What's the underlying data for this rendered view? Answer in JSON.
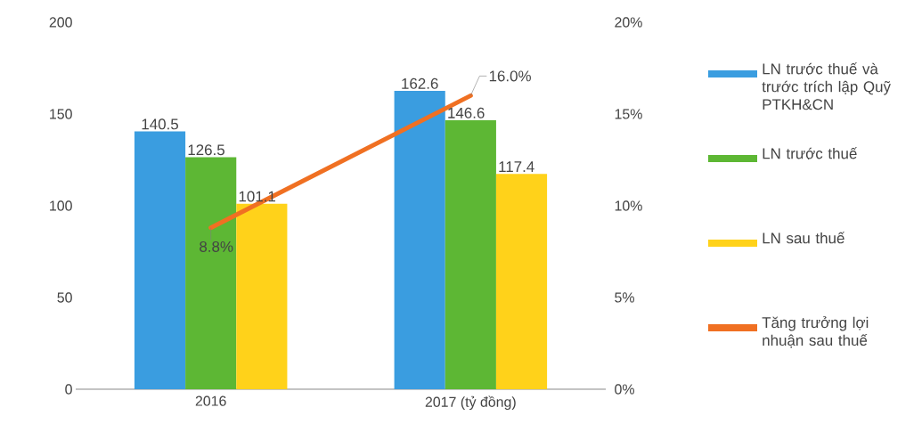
{
  "chart_data": {
    "type": "bar",
    "categories": [
      "2016",
      "2017 (tỷ đồng)"
    ],
    "series": [
      {
        "name": "LN trước thuế và trước trích lập Quỹ PTKH&CN",
        "color": "#3a9de0",
        "values": [
          140.5,
          162.6
        ]
      },
      {
        "name": "LN trước thuế",
        "color": "#5db734",
        "values": [
          126.5,
          146.6
        ]
      },
      {
        "name": "LN sau thuế",
        "color": "#ffd21a",
        "values": [
          101.1,
          117.4
        ]
      },
      {
        "name": "Tăng trưởng lợi nhuận sau thuế",
        "type": "line",
        "axis": "y2",
        "color": "#f07022",
        "values": [
          8.8,
          16.0
        ],
        "value_labels": [
          "8.8%",
          "16.0%"
        ]
      }
    ],
    "ylim": [
      0,
      200
    ],
    "yticks": [
      0,
      50,
      100,
      150,
      200
    ],
    "y2lim": [
      0,
      20
    ],
    "y2ticks": [
      {
        "value": 0,
        "label": "0%"
      },
      {
        "value": 5,
        "label": "5%"
      },
      {
        "value": 10,
        "label": "10%"
      },
      {
        "value": 15,
        "label": "15%"
      },
      {
        "value": 20,
        "label": "20%"
      }
    ],
    "data_labels": true,
    "grid": false,
    "legend": "right",
    "marker": "none",
    "line_style": "solid"
  }
}
